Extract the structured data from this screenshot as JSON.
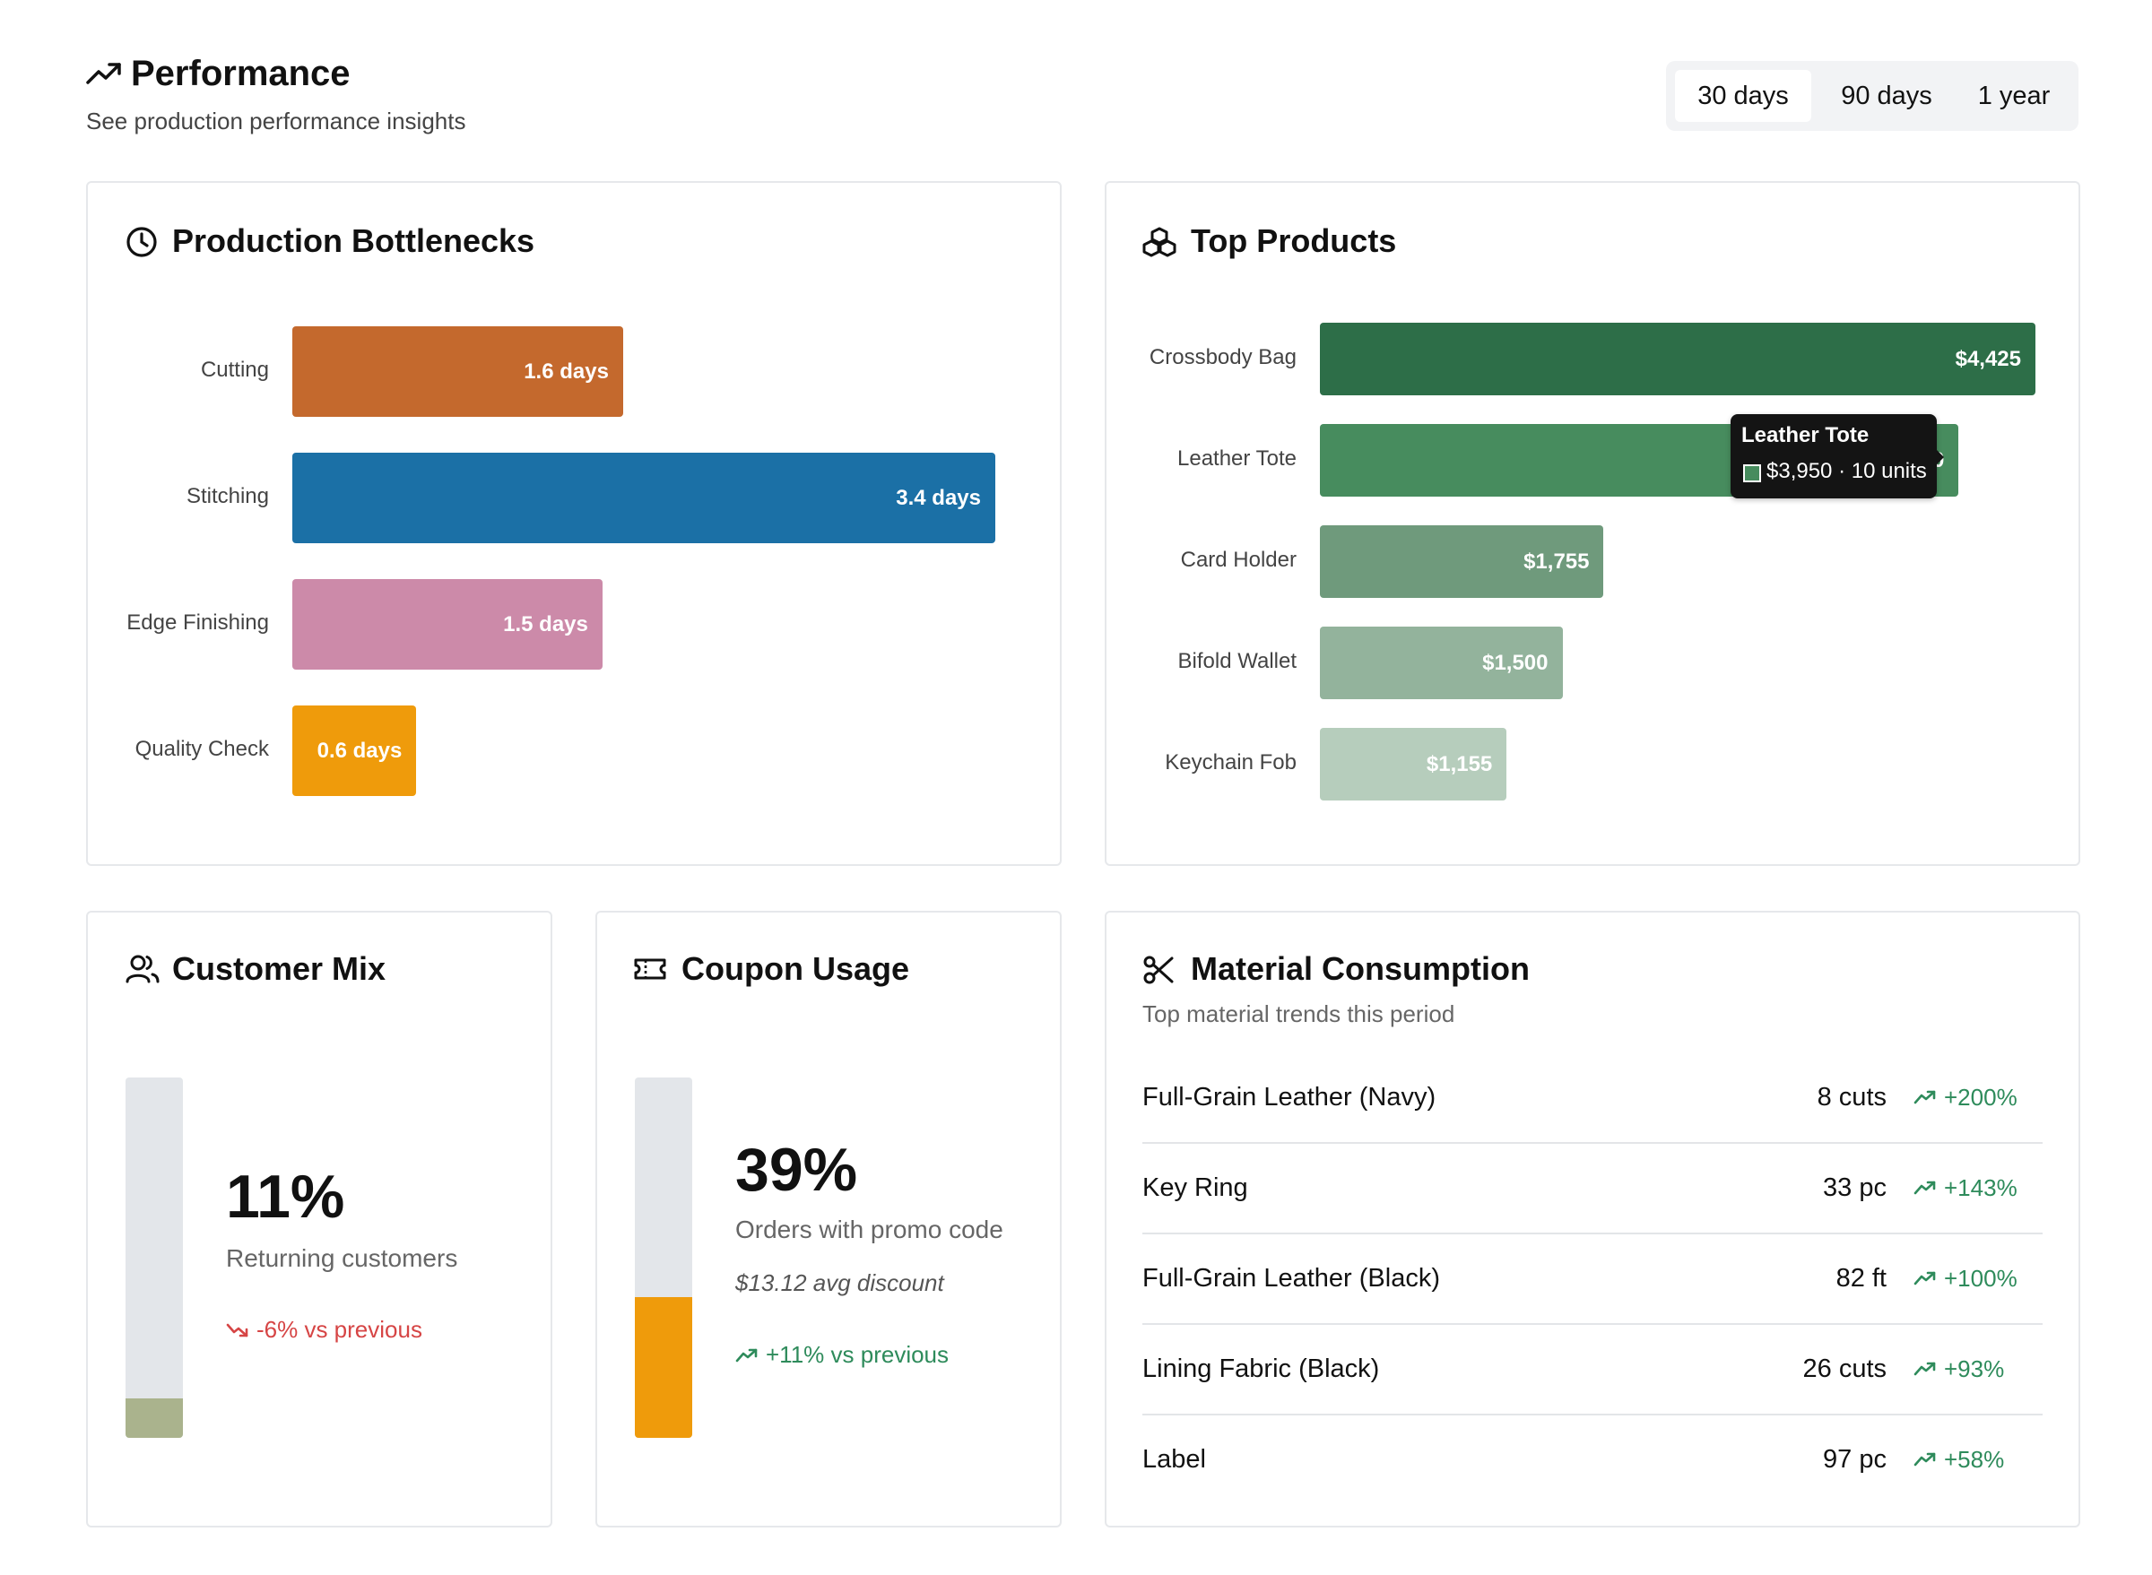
{
  "header": {
    "title": "Performance",
    "subtitle": "See production performance insights",
    "icon": "trending-up-icon",
    "ranges": [
      "30 days",
      "90 days",
      "1 year"
    ],
    "active_range": "30 days"
  },
  "bottlenecks": {
    "title": "Production Bottlenecks",
    "icon": "clock-icon",
    "chart_data": {
      "type": "bar",
      "orientation": "horizontal",
      "unit": "days",
      "categories": [
        "Cutting",
        "Stitching",
        "Edge Finishing",
        "Quality Check"
      ],
      "values": [
        1.6,
        3.4,
        1.5,
        0.6
      ],
      "labels": [
        "1.6 days",
        "3.4 days",
        "1.5 days",
        "0.6 days"
      ],
      "colors": [
        "#c4692d",
        "#1b70a6",
        "#cc8aa9",
        "#ef9b0b"
      ]
    }
  },
  "top_products": {
    "title": "Top Products",
    "icon": "boxes-icon",
    "chart_data": {
      "type": "bar",
      "orientation": "horizontal",
      "categories": [
        "Crossbody Bag",
        "Leather Tote",
        "Card Holder",
        "Bifold Wallet",
        "Keychain Fob"
      ],
      "values": [
        4425,
        3950,
        1755,
        1500,
        1155
      ],
      "labels": [
        "$4,425",
        "$3,950",
        "$1,755",
        "$1,500",
        "$1,155"
      ],
      "colors": [
        "#2d6e48",
        "#478c5e",
        "#6f9a7c",
        "#93b39c",
        "#b6cdbc"
      ]
    },
    "tooltip": {
      "title": "Leather Tote",
      "value": "$3,950 · 10 units"
    }
  },
  "customer_mix": {
    "title": "Customer Mix",
    "icon": "users-icon",
    "value": "11%",
    "fraction": 0.11,
    "description": "Returning customers",
    "trend": "-6% vs previous",
    "trend_direction": "down",
    "fill_color": "#aab38d"
  },
  "coupon_usage": {
    "title": "Coupon Usage",
    "icon": "ticket-icon",
    "value": "39%",
    "fraction": 0.39,
    "description": "Orders with promo code",
    "note": "$13.12 avg discount",
    "trend": "+11% vs previous",
    "trend_direction": "up",
    "fill_color": "#ef9b0b"
  },
  "materials": {
    "title": "Material Consumption",
    "icon": "scissors-icon",
    "subtitle": "Top material trends this period",
    "rows": [
      {
        "name": "Full-Grain Leather (Navy)",
        "qty": "8 cuts",
        "delta": "+200%"
      },
      {
        "name": "Key Ring",
        "qty": "33 pc",
        "delta": "+143%"
      },
      {
        "name": "Full-Grain Leather (Black)",
        "qty": "82 ft",
        "delta": "+100%"
      },
      {
        "name": "Lining Fabric (Black)",
        "qty": "26 cuts",
        "delta": "+93%"
      },
      {
        "name": "Label",
        "qty": "97 pc",
        "delta": "+58%"
      }
    ]
  }
}
